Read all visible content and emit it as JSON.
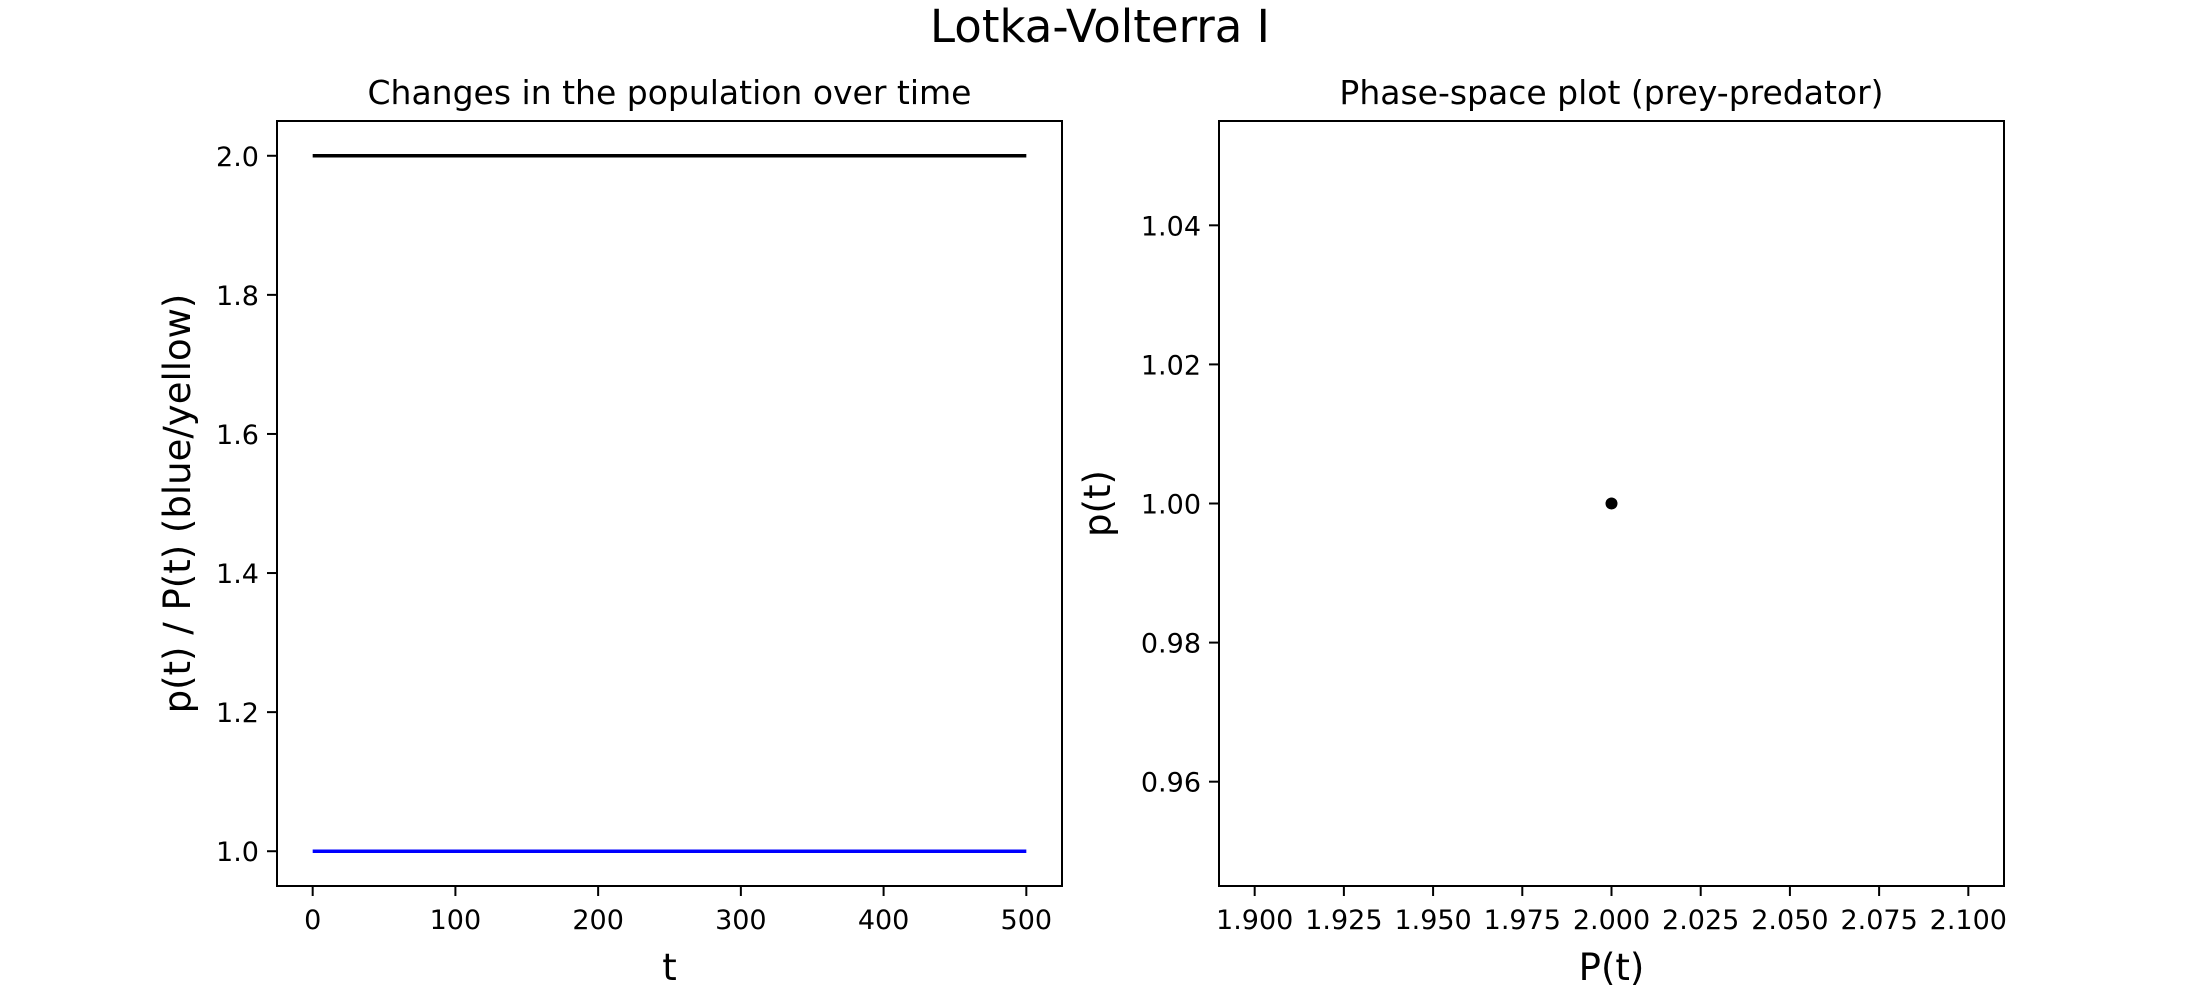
{
  "figure": {
    "suptitle": "Lotka-Volterra I"
  },
  "chart_data": [
    {
      "type": "line",
      "title": "Changes in the population over time",
      "xlabel": "t",
      "ylabel": "p(t) / P(t) (blue/yellow)",
      "xlim": [
        -25,
        525
      ],
      "ylim": [
        0.95,
        2.05
      ],
      "xticks": [
        0,
        100,
        200,
        300,
        400,
        500
      ],
      "xtick_labels": [
        "0",
        "100",
        "200",
        "300",
        "400",
        "500"
      ],
      "yticks": [
        1.0,
        1.2,
        1.4,
        1.6,
        1.8,
        2.0
      ],
      "ytick_labels": [
        "1.0",
        "1.2",
        "1.4",
        "1.6",
        "1.8",
        "2.0"
      ],
      "grid": false,
      "series": [
        {
          "x": [
            0,
            500
          ],
          "y": [
            1.0,
            1.0
          ],
          "color": "#0000ff"
        },
        {
          "x": [
            0,
            500
          ],
          "y": [
            2.0,
            2.0
          ],
          "color": "#000000"
        }
      ]
    },
    {
      "type": "scatter",
      "title": "Phase-space plot (prey-predator)",
      "xlabel": "P(t)",
      "ylabel": "p(t)",
      "xlim": [
        1.89,
        2.11
      ],
      "ylim": [
        0.945,
        1.055
      ],
      "xticks": [
        1.9,
        1.925,
        1.95,
        1.975,
        2.0,
        2.025,
        2.05,
        2.075,
        2.1
      ],
      "xtick_labels": [
        "1.900",
        "1.925",
        "1.950",
        "1.975",
        "2.000",
        "2.025",
        "2.050",
        "2.075",
        "2.100"
      ],
      "yticks": [
        0.96,
        0.98,
        1.0,
        1.02,
        1.04
      ],
      "ytick_labels": [
        "0.96",
        "0.98",
        "1.00",
        "1.02",
        "1.04"
      ],
      "grid": false,
      "series": [
        {
          "x": [
            2.0
          ],
          "y": [
            1.0
          ],
          "color": "#000000"
        }
      ]
    }
  ]
}
